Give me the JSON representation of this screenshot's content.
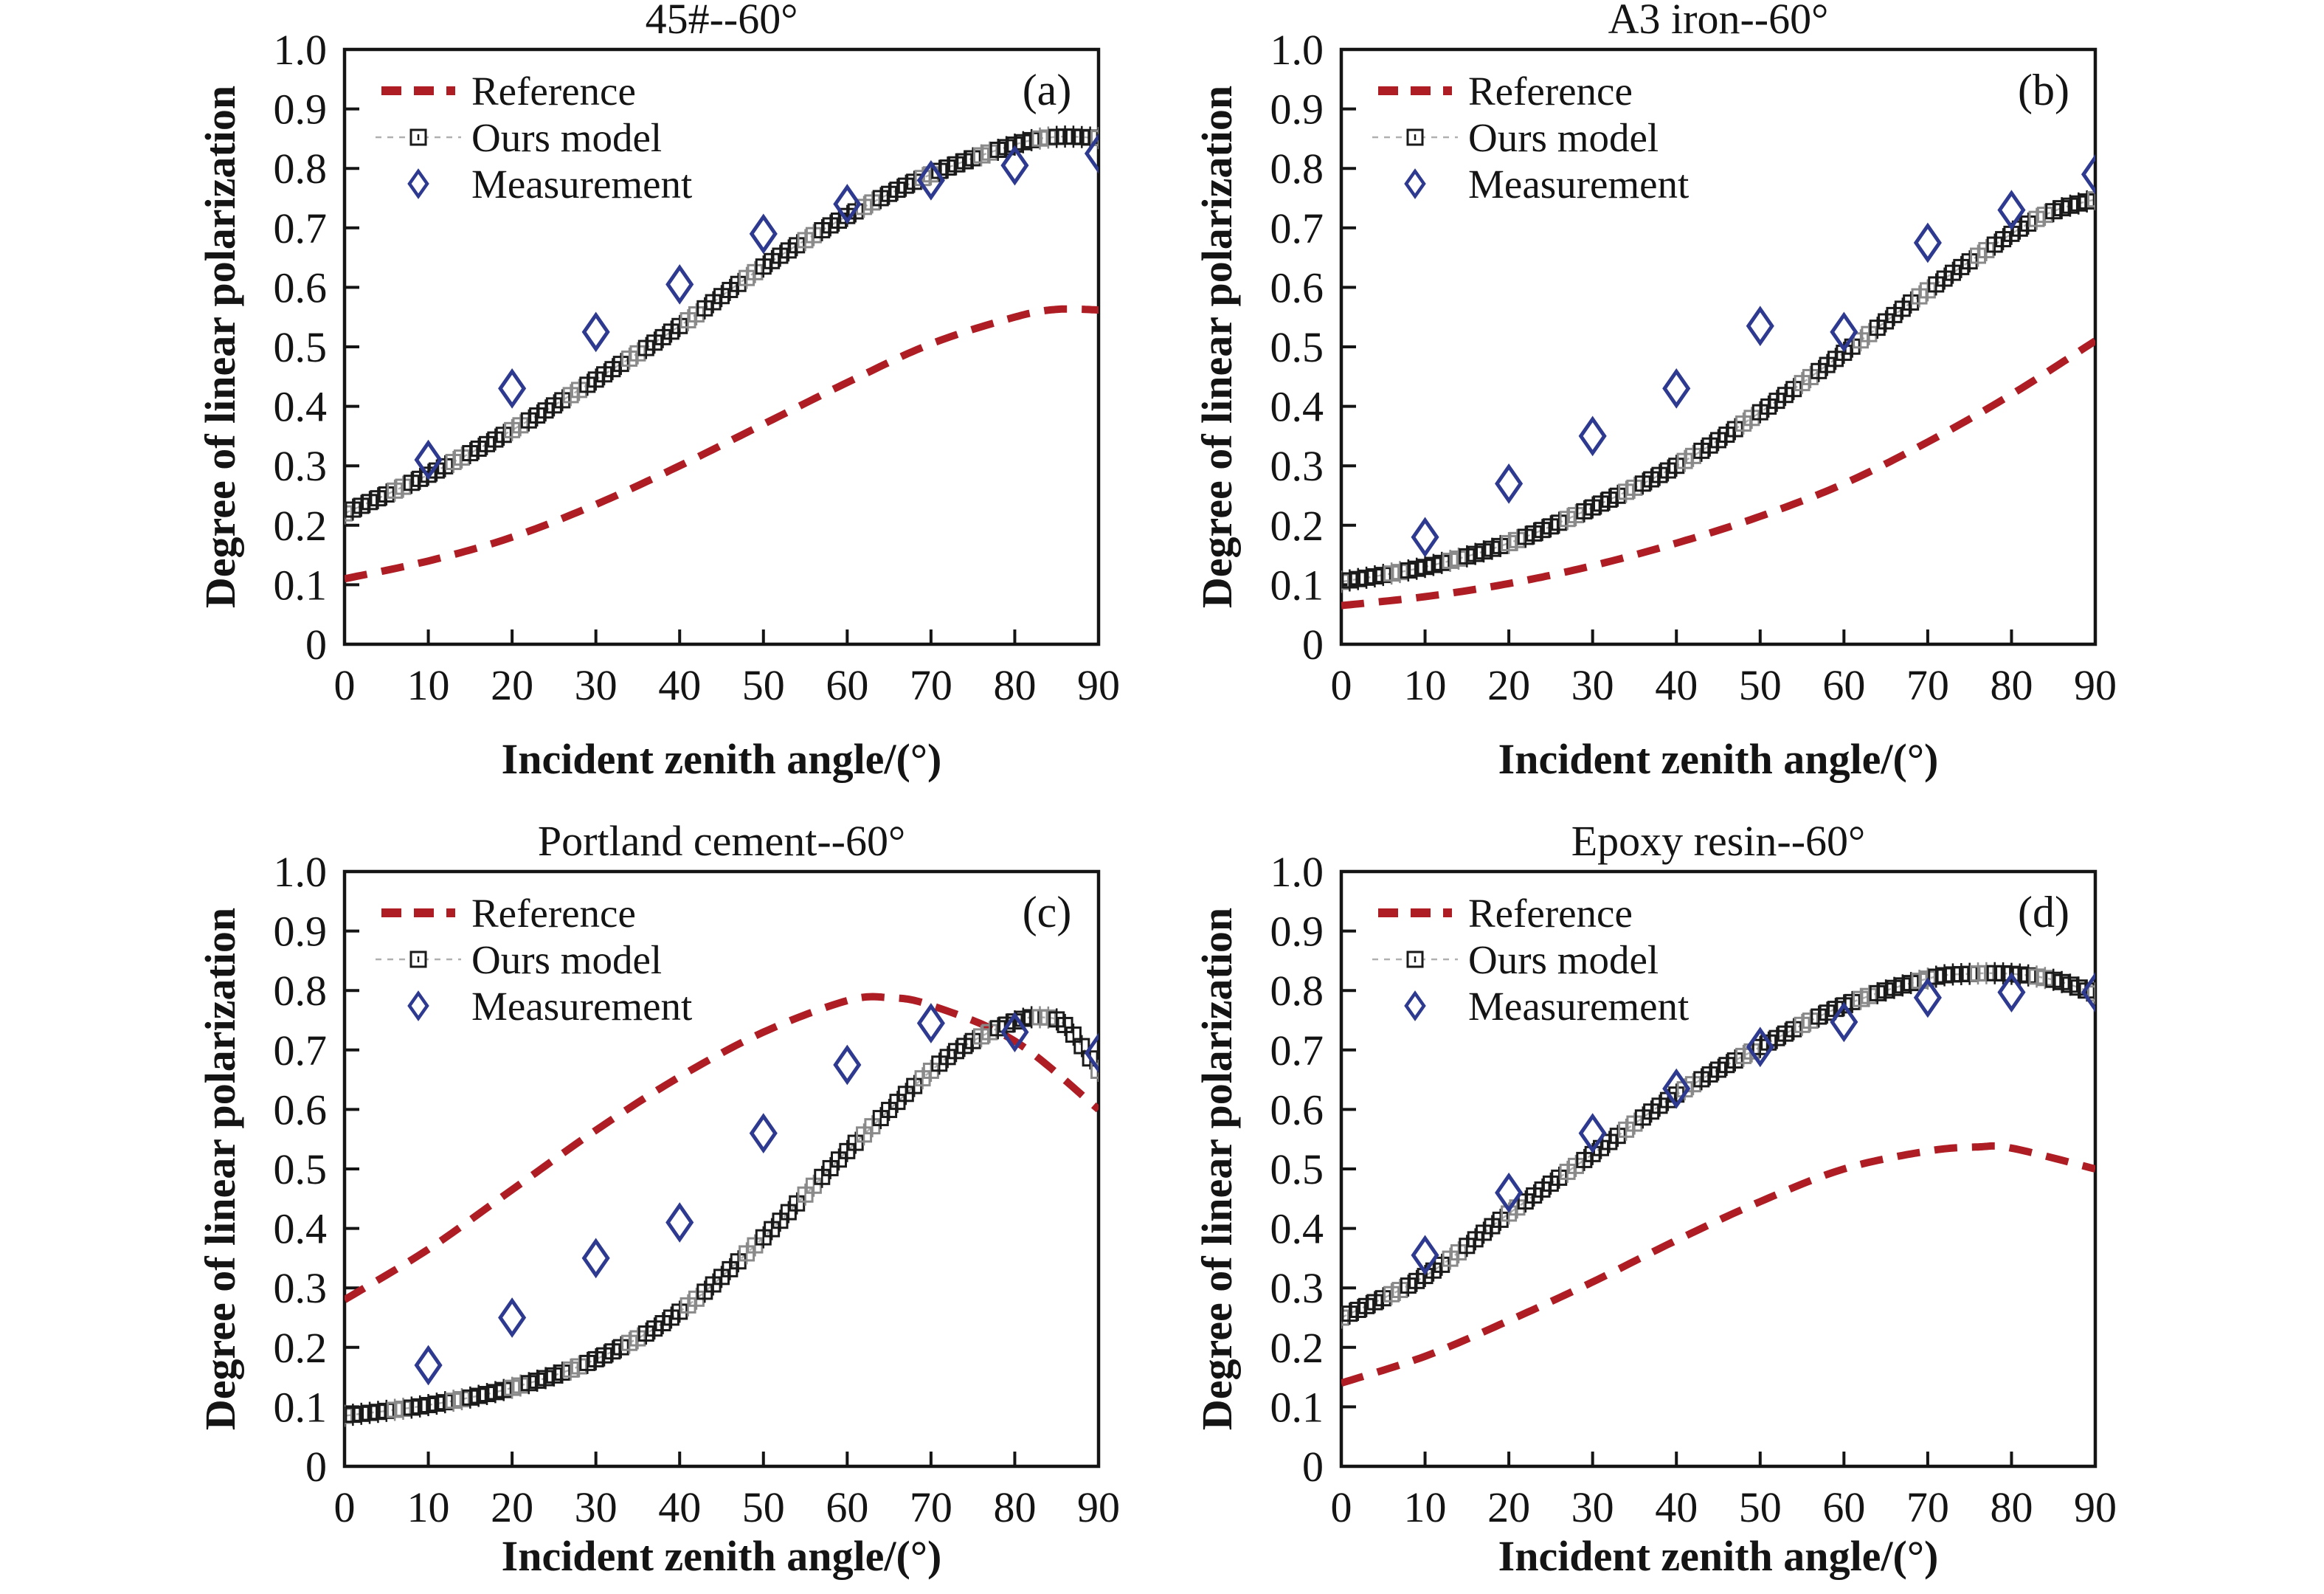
{
  "figure": {
    "background": "#ffffff",
    "legend_labels": [
      "Reference",
      "Ours model",
      "Measurement"
    ],
    "colors": {
      "reference": "#ae1c24",
      "ours_model": "#1a1a1a",
      "ours_model_alt": "#8a8a8a",
      "measurement": "#2e3a8f",
      "axis": "#141414",
      "model_connector": "#b0b0b0"
    }
  },
  "chart_data": [
    {
      "type": "line",
      "panel_label": "(a)",
      "title": "45#--60°",
      "xlabel": "Incident zenith angle/(°)",
      "ylabel": "Degree of linear polarization",
      "xlim": [
        0,
        90
      ],
      "ylim": [
        0,
        1.0
      ],
      "xticks": [
        0,
        10,
        20,
        30,
        40,
        50,
        60,
        70,
        80,
        90
      ],
      "ytick_labels": [
        "0",
        "0.1",
        "0.2",
        "0.3",
        "0.4",
        "0.5",
        "0.6",
        "0.7",
        "0.8",
        "0.9",
        "1.0"
      ],
      "legend": [
        "Reference",
        "Ours model",
        "Measurement"
      ],
      "legend_position": "upper-left",
      "grid": false,
      "series": [
        {
          "name": "Reference",
          "style": "dashed-line",
          "x": [
            0,
            10,
            20,
            30,
            40,
            50,
            60,
            70,
            80,
            85,
            90
          ],
          "y": [
            0.11,
            0.14,
            0.18,
            0.235,
            0.3,
            0.37,
            0.44,
            0.505,
            0.55,
            0.563,
            0.562
          ]
        },
        {
          "name": "Ours model",
          "style": "square-markers",
          "x": [
            0,
            10,
            20,
            30,
            40,
            50,
            60,
            70,
            80,
            85,
            90
          ],
          "y": [
            0.22,
            0.285,
            0.36,
            0.445,
            0.535,
            0.635,
            0.72,
            0.79,
            0.84,
            0.853,
            0.851
          ]
        },
        {
          "name": "Measurement",
          "style": "diamond-markers",
          "x": [
            10,
            20,
            30,
            40,
            50,
            60,
            70,
            80,
            90
          ],
          "y": [
            0.31,
            0.43,
            0.525,
            0.605,
            0.69,
            0.74,
            0.78,
            0.805,
            0.825
          ]
        }
      ]
    },
    {
      "type": "line",
      "panel_label": "(b)",
      "title": "A3 iron--60°",
      "xlabel": "Incident zenith angle/(°)",
      "ylabel": "Degree of linear polarization",
      "xlim": [
        0,
        90
      ],
      "ylim": [
        0,
        1.0
      ],
      "xticks": [
        0,
        10,
        20,
        30,
        40,
        50,
        60,
        70,
        80,
        90
      ],
      "ytick_labels": [
        "0",
        "0.1",
        "0.2",
        "0.3",
        "0.4",
        "0.5",
        "0.6",
        "0.7",
        "0.8",
        "0.9",
        "1.0"
      ],
      "legend": [
        "Reference",
        "Ours model",
        "Measurement"
      ],
      "legend_position": "upper-left",
      "grid": false,
      "series": [
        {
          "name": "Reference",
          "style": "dashed-line",
          "x": [
            0,
            10,
            20,
            30,
            40,
            50,
            60,
            70,
            80,
            90
          ],
          "y": [
            0.065,
            0.08,
            0.102,
            0.132,
            0.17,
            0.215,
            0.27,
            0.34,
            0.42,
            0.51
          ]
        },
        {
          "name": "Ours model",
          "style": "square-markers",
          "x": [
            0,
            10,
            20,
            30,
            40,
            50,
            60,
            70,
            80,
            85,
            90
          ],
          "y": [
            0.105,
            0.13,
            0.17,
            0.23,
            0.3,
            0.39,
            0.49,
            0.595,
            0.69,
            0.728,
            0.748
          ]
        },
        {
          "name": "Measurement",
          "style": "diamond-markers",
          "x": [
            10,
            20,
            30,
            40,
            50,
            60,
            70,
            80,
            90
          ],
          "y": [
            0.18,
            0.27,
            0.35,
            0.43,
            0.535,
            0.525,
            0.675,
            0.73,
            0.79
          ]
        }
      ]
    },
    {
      "type": "line",
      "panel_label": "(c)",
      "title": "Portland cement--60°",
      "xlabel": "Incident zenith angle/(°)",
      "ylabel": "Degree of linear polarization",
      "xlim": [
        0,
        90
      ],
      "ylim": [
        0,
        1.0
      ],
      "xticks": [
        0,
        10,
        20,
        30,
        40,
        50,
        60,
        70,
        80,
        90
      ],
      "ytick_labels": [
        "0",
        "0.1",
        "0.2",
        "0.3",
        "0.4",
        "0.5",
        "0.6",
        "0.7",
        "0.8",
        "0.9",
        "1.0"
      ],
      "legend": [
        "Reference",
        "Ours model",
        "Measurement"
      ],
      "legend_position": "upper-left",
      "grid": false,
      "series": [
        {
          "name": "Reference",
          "style": "dashed-line",
          "x": [
            0,
            10,
            20,
            30,
            40,
            50,
            60,
            65,
            70,
            80,
            90
          ],
          "y": [
            0.28,
            0.365,
            0.465,
            0.565,
            0.655,
            0.73,
            0.783,
            0.788,
            0.775,
            0.715,
            0.6
          ]
        },
        {
          "name": "Ours model",
          "style": "square-markers",
          "x": [
            0,
            10,
            20,
            30,
            40,
            50,
            60,
            70,
            75,
            80,
            83,
            86,
            90
          ],
          "y": [
            0.085,
            0.103,
            0.132,
            0.18,
            0.26,
            0.385,
            0.53,
            0.665,
            0.715,
            0.748,
            0.755,
            0.742,
            0.665
          ]
        },
        {
          "name": "Measurement",
          "style": "diamond-markers",
          "x": [
            10,
            20,
            30,
            40,
            50,
            60,
            70,
            80,
            90
          ],
          "y": [
            0.17,
            0.25,
            0.35,
            0.41,
            0.56,
            0.675,
            0.745,
            0.73,
            0.695
          ]
        }
      ]
    },
    {
      "type": "line",
      "panel_label": "(d)",
      "title": "Epoxy resin--60°",
      "xlabel": "Incident zenith angle/(°)",
      "ylabel": "Degree of linear polarization",
      "xlim": [
        0,
        90
      ],
      "ylim": [
        0,
        1.0
      ],
      "xticks": [
        0,
        10,
        20,
        30,
        40,
        50,
        60,
        70,
        80,
        90
      ],
      "ytick_labels": [
        "0",
        "0.1",
        "0.2",
        "0.3",
        "0.4",
        "0.5",
        "0.6",
        "0.7",
        "0.8",
        "0.9",
        "1.0"
      ],
      "legend": [
        "Reference",
        "Ours model",
        "Measurement"
      ],
      "legend_position": "upper-left",
      "grid": false,
      "series": [
        {
          "name": "Reference",
          "style": "dashed-line",
          "x": [
            0,
            10,
            20,
            30,
            40,
            50,
            60,
            70,
            76,
            80,
            90
          ],
          "y": [
            0.14,
            0.185,
            0.245,
            0.31,
            0.38,
            0.445,
            0.5,
            0.53,
            0.537,
            0.535,
            0.5
          ]
        },
        {
          "name": "Ours model",
          "style": "square-markers",
          "x": [
            0,
            10,
            20,
            30,
            40,
            50,
            60,
            70,
            75,
            80,
            85,
            90
          ],
          "y": [
            0.25,
            0.32,
            0.425,
            0.525,
            0.625,
            0.705,
            0.775,
            0.82,
            0.828,
            0.828,
            0.818,
            0.795
          ]
        },
        {
          "name": "Measurement",
          "style": "diamond-markers",
          "x": [
            10,
            20,
            30,
            40,
            50,
            60,
            70,
            80,
            90
          ],
          "y": [
            0.355,
            0.46,
            0.56,
            0.635,
            0.705,
            0.747,
            0.788,
            0.797,
            0.797
          ]
        }
      ]
    }
  ]
}
